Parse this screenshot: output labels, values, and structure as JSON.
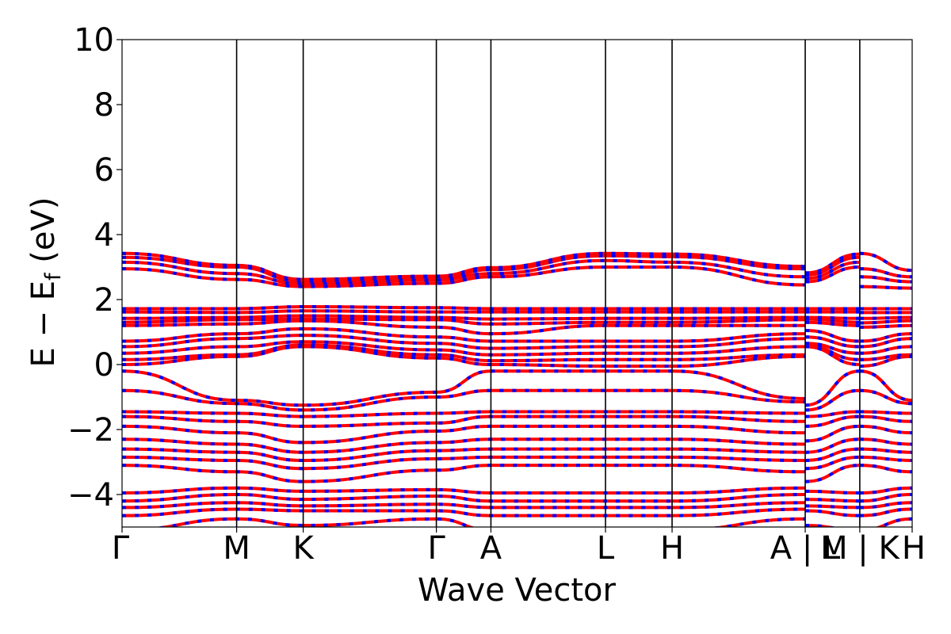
{
  "chart_data": {
    "type": "line",
    "title": "",
    "xlabel": "Wave Vector",
    "ylabel_main": "E − E",
    "ylabel_sub": "f",
    "ylabel_unit": " (eV)",
    "ylim": [
      -5,
      10
    ],
    "yticks": [
      10,
      8,
      6,
      4,
      2,
      0,
      -2,
      -4
    ],
    "ytick_labels": [
      "10",
      "8",
      "6",
      "4",
      "2",
      "0",
      "−2",
      "−4"
    ],
    "xlim": [
      0,
      7.24
    ],
    "kpath_positions": [
      0,
      1.05,
      1.66,
      2.88,
      3.38,
      4.43,
      5.04,
      6.26,
      6.76,
      7.24
    ],
    "kpath_labels": [
      "Γ",
      "M",
      "K",
      "Γ",
      "A",
      "L",
      "H",
      "A|L",
      "M|K",
      "H"
    ],
    "kpath_label_texts": [
      "Γ",
      "M",
      "K",
      "Γ",
      "A",
      "L",
      "H",
      "A | L",
      "M | K",
      "H"
    ],
    "segment_breaks": [
      6.26,
      6.76
    ],
    "grid": false,
    "legend": "none",
    "colors": {
      "band": "#ff0000",
      "dash": "#0000ff",
      "axis": "#000000"
    },
    "series": [
      {
        "values": [
          3.42,
          3.05,
          2.62,
          2.72,
          2.98,
          3.42,
          3.4,
          3.02,
          2.82,
          3.4,
          3.42,
          2.9,
          3.02,
          2.62,
          2.8
        ]
      },
      {
        "values": [
          3.3,
          3.0,
          2.55,
          2.65,
          2.92,
          3.35,
          3.32,
          2.95,
          2.75,
          3.3,
          2.95,
          2.7,
          2.9,
          2.55,
          2.65
        ]
      },
      {
        "values": [
          3.15,
          2.8,
          2.48,
          2.6,
          2.8,
          3.2,
          3.15,
          2.7,
          2.65,
          3.15,
          2.7,
          2.55,
          2.62,
          2.45,
          2.55
        ]
      },
      {
        "values": [
          2.95,
          2.62,
          2.4,
          2.5,
          2.7,
          3.0,
          3.0,
          2.45,
          2.55,
          3.0,
          2.4,
          2.35,
          2.45,
          2.4,
          2.4
        ]
      },
      {
        "values": [
          1.72,
          1.72,
          1.78,
          1.75,
          1.72,
          1.72,
          1.72,
          1.72,
          1.72,
          1.72,
          1.72,
          1.72,
          1.72,
          1.75,
          1.72
        ]
      },
      {
        "values": [
          1.62,
          1.6,
          1.65,
          1.62,
          1.62,
          1.62,
          1.62,
          1.62,
          1.62,
          1.62,
          1.6,
          1.6,
          1.62,
          1.6,
          1.6
        ]
      },
      {
        "values": [
          1.42,
          1.45,
          1.5,
          1.45,
          1.4,
          1.42,
          1.42,
          1.45,
          1.45,
          1.42,
          1.42,
          1.45,
          1.4,
          1.45,
          1.45
        ]
      },
      {
        "values": [
          1.3,
          1.38,
          1.4,
          1.38,
          1.25,
          1.3,
          1.3,
          1.38,
          1.4,
          1.3,
          1.28,
          1.35,
          1.3,
          1.35,
          1.38
        ]
      },
      {
        "values": [
          1.2,
          1.25,
          1.35,
          1.15,
          0.95,
          1.2,
          1.2,
          1.2,
          1.3,
          1.2,
          1.15,
          1.2,
          1.15,
          1.2,
          1.25
        ]
      },
      {
        "values": [
          0.72,
          0.95,
          1.1,
          0.85,
          0.72,
          0.72,
          0.72,
          0.95,
          1.05,
          0.72,
          0.72,
          0.95,
          1.0,
          0.95,
          1.0
        ]
      },
      {
        "values": [
          0.55,
          0.8,
          0.9,
          0.65,
          0.5,
          0.55,
          0.55,
          0.8,
          0.85,
          0.55,
          0.55,
          0.8,
          0.85,
          0.8,
          0.8
        ]
      },
      {
        "values": [
          0.35,
          0.55,
          0.7,
          0.45,
          0.3,
          0.35,
          0.35,
          0.55,
          0.65,
          0.35,
          0.35,
          0.55,
          0.6,
          0.6,
          0.65
        ]
      },
      {
        "values": [
          0.15,
          0.3,
          0.6,
          0.3,
          0.12,
          0.15,
          0.15,
          0.3,
          0.58,
          0.15,
          0.15,
          0.3,
          0.35,
          0.55,
          0.58
        ]
      },
      {
        "values": [
          0.0,
          0.25,
          0.55,
          0.2,
          0.0,
          -0.05,
          -0.05,
          0.25,
          0.55,
          0.0,
          -0.05,
          0.25,
          0.25,
          0.5,
          0.55
        ]
      },
      {
        "values": [
          -0.2,
          -1.1,
          -1.25,
          -0.85,
          -0.2,
          -0.2,
          -0.2,
          -1.05,
          -1.25,
          -0.2,
          -0.2,
          -1.1,
          -1.1,
          -1.3,
          -1.3
        ]
      },
      {
        "values": [
          -0.8,
          -1.2,
          -1.4,
          -1.0,
          -0.8,
          -0.8,
          -0.8,
          -1.15,
          -1.4,
          -0.8,
          -0.8,
          -1.2,
          -1.2,
          -1.4,
          -1.4
        ]
      },
      {
        "values": [
          -1.45,
          -1.5,
          -1.6,
          -1.5,
          -1.45,
          -1.45,
          -1.45,
          -1.5,
          -1.6,
          -1.45,
          -1.45,
          -1.5,
          -1.5,
          -1.6,
          -1.6
        ]
      },
      {
        "values": [
          -1.6,
          -1.75,
          -1.9,
          -1.8,
          -1.6,
          -1.6,
          -1.6,
          -1.75,
          -1.9,
          -1.6,
          -1.6,
          -1.75,
          -1.75,
          -2.0,
          -2.1
        ]
      },
      {
        "values": [
          -1.9,
          -2.1,
          -2.4,
          -2.05,
          -1.9,
          -1.9,
          -1.9,
          -2.1,
          -2.35,
          -1.9,
          -1.9,
          -2.1,
          -2.1,
          -2.4,
          -2.45
        ]
      },
      {
        "values": [
          -2.3,
          -2.45,
          -2.7,
          -2.4,
          -2.3,
          -2.3,
          -2.3,
          -2.45,
          -2.7,
          -2.3,
          -2.3,
          -2.45,
          -2.45,
          -2.6,
          -2.6
        ]
      },
      {
        "values": [
          -2.6,
          -2.7,
          -2.95,
          -2.65,
          -2.6,
          -2.6,
          -2.6,
          -2.7,
          -2.95,
          -2.6,
          -2.6,
          -2.7,
          -2.75,
          -2.85,
          -2.9
        ]
      },
      {
        "values": [
          -2.85,
          -2.95,
          -3.2,
          -2.9,
          -2.85,
          -2.85,
          -2.85,
          -2.95,
          -3.2,
          -2.85,
          -2.85,
          -2.95,
          -3.0,
          -3.2,
          -3.1
        ]
      },
      {
        "values": [
          -3.1,
          -3.3,
          -3.6,
          -3.25,
          -3.1,
          -3.1,
          -3.1,
          -3.3,
          -3.6,
          -3.1,
          -3.1,
          -3.3,
          -3.4,
          -3.5,
          -3.4
        ]
      },
      {
        "values": [
          -3.95,
          -3.8,
          -3.9,
          -3.85,
          -3.95,
          -3.95,
          -3.95,
          -3.8,
          -3.9,
          -3.95,
          -3.95,
          -3.8,
          -3.7,
          -3.8,
          -3.8
        ]
      },
      {
        "values": [
          -4.2,
          -4.0,
          -4.15,
          -4.05,
          -4.2,
          -4.2,
          -4.2,
          -4.0,
          -4.15,
          -4.2,
          -4.2,
          -4.0,
          -3.95,
          -4.1,
          -4.1
        ]
      },
      {
        "values": [
          -4.4,
          -4.25,
          -4.35,
          -4.3,
          -4.4,
          -4.4,
          -4.4,
          -4.25,
          -4.35,
          -4.4,
          -4.4,
          -4.25,
          -4.2,
          -4.3,
          -4.35
        ]
      },
      {
        "values": [
          -4.65,
          -4.45,
          -4.5,
          -4.5,
          -4.65,
          -4.65,
          -4.65,
          -4.45,
          -4.5,
          -4.65,
          -4.65,
          -4.45,
          -4.45,
          -4.45,
          -4.5
        ]
      },
      {
        "values": [
          -5.1,
          -4.75,
          -4.95,
          -4.75,
          -5.1,
          -5.1,
          -5.1,
          -4.75,
          -4.95,
          -5.1,
          -5.1,
          -4.75,
          -4.7,
          -4.7,
          -4.75
        ]
      }
    ]
  }
}
